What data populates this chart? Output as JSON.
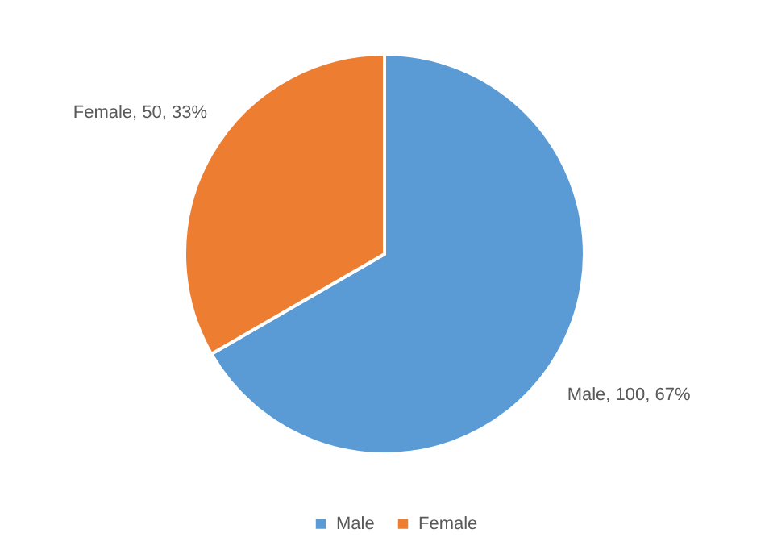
{
  "chart_data": {
    "type": "pie",
    "categories": [
      "Male",
      "Female"
    ],
    "values": [
      100,
      50
    ],
    "colors": [
      "#5b9bd5",
      "#ed7d31"
    ],
    "value_labels": [
      "Male, 100, 67%",
      "Female, 50, 33%"
    ],
    "legend": "bottom"
  }
}
